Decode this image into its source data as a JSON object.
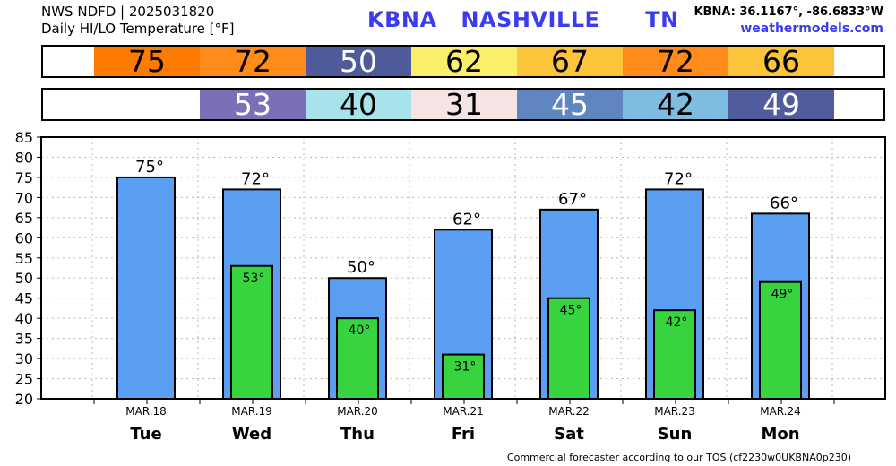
{
  "header": {
    "line1": "NWS NDFD | 2025031820",
    "line2": "Daily HI/LO Temperature [°F]",
    "station": "KBNA",
    "city": "NASHVILLE",
    "state": "TN",
    "coords": "KBNA: 36.1167°, -86.6833°W",
    "site": "weathermodels.com"
  },
  "hi_strip": [
    {
      "label": "75",
      "color": "#ff7b00"
    },
    {
      "label": "72",
      "color": "#ff8c1a"
    },
    {
      "label": "50",
      "color": "#4f5a9a"
    },
    {
      "label": "62",
      "color": "#fbef6a"
    },
    {
      "label": "67",
      "color": "#fbc43a"
    },
    {
      "label": "72",
      "color": "#ff8c1a"
    },
    {
      "label": "66",
      "color": "#fbc43a"
    }
  ],
  "lo_strip": [
    {
      "label": "",
      "color": "#ffffff"
    },
    {
      "label": "53",
      "color": "#7b6fb8"
    },
    {
      "label": "40",
      "color": "#a8e2eb"
    },
    {
      "label": "31",
      "color": "#f6e4e4"
    },
    {
      "label": "45",
      "color": "#5f86c0"
    },
    {
      "label": "42",
      "color": "#7fbde0"
    },
    {
      "label": "49",
      "color": "#505c9b"
    }
  ],
  "chart_data": {
    "type": "bar",
    "categories": [
      "Tue",
      "Wed",
      "Thu",
      "Fri",
      "Sat",
      "Sun",
      "Mon"
    ],
    "dates": [
      "MAR.18",
      "MAR.19",
      "MAR.20",
      "MAR.21",
      "MAR.22",
      "MAR.23",
      "MAR.24"
    ],
    "series": [
      {
        "values": [
          75,
          72,
          50,
          62,
          67,
          72,
          66
        ],
        "color": "#5b9ff2"
      },
      {
        "values": [
          null,
          53,
          40,
          31,
          45,
          42,
          49
        ],
        "color": "#37d43f"
      }
    ],
    "hi_labels": [
      "75°",
      "72°",
      "50°",
      "62°",
      "67°",
      "72°",
      "66°"
    ],
    "lo_labels": [
      "",
      "53°",
      "40°",
      "31°",
      "45°",
      "42°",
      "49°"
    ],
    "ylim": [
      20,
      85
    ],
    "yticks": [
      "20",
      "25",
      "30",
      "35",
      "40",
      "45",
      "50",
      "55",
      "60",
      "65",
      "70",
      "75",
      "80",
      "85"
    ],
    "grid": true
  },
  "footer": "Commercial forecaster according to our TOS (cf2230w0UKBNA0p230)"
}
